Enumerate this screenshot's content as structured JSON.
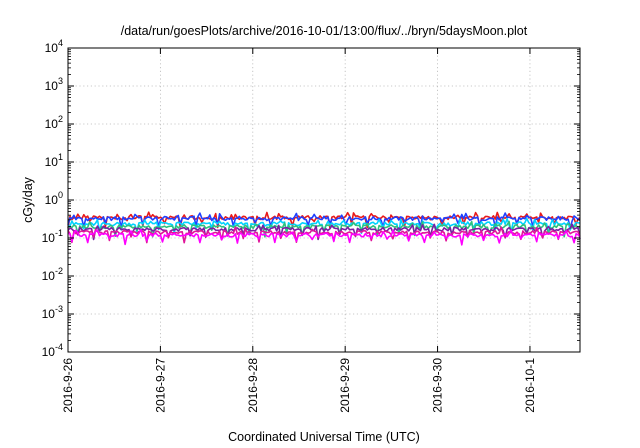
{
  "chart_data": {
    "type": "line",
    "title": "/data/run/goesPlots/archive/2016-10-01/13:00/flux/../bryn/5daysMoon.plot",
    "xlabel": "Coordinated Universal Time (UTC)",
    "ylabel": "cGy/day",
    "y_scale": "log",
    "ylim": [
      0.0001,
      10000
    ],
    "y_ticks": [
      {
        "base": "10",
        "exp": "-4",
        "value": 0.0001
      },
      {
        "base": "10",
        "exp": "-3",
        "value": 0.001
      },
      {
        "base": "10",
        "exp": "-2",
        "value": 0.01
      },
      {
        "base": "10",
        "exp": "-1",
        "value": 0.1
      },
      {
        "base": "10",
        "exp": "0",
        "value": 1
      },
      {
        "base": "10",
        "exp": "1",
        "value": 10
      },
      {
        "base": "10",
        "exp": "2",
        "value": 100
      },
      {
        "base": "10",
        "exp": "3",
        "value": 1000
      },
      {
        "base": "10",
        "exp": "4",
        "value": 10000
      }
    ],
    "xlim": [
      "2016-09-26 00:00",
      "2016-10-01 13:00"
    ],
    "x_ticks": [
      "2016-9-26",
      "2016-9-27",
      "2016-9-28",
      "2016-9-29",
      "2016-9-30",
      "2016-10-1"
    ],
    "grid": true,
    "series_colors": [
      "#e8191a",
      "#1f3fff",
      "#00d2ff",
      "#2ec27e",
      "#7a1fa2",
      "#e0169a",
      "#ff00ff"
    ],
    "series": [
      {
        "color": "#e8191a",
        "x": [
          "2016-09-26 00:00",
          "2016-09-27 00:00",
          "2016-09-28 00:00",
          "2016-09-29 00:00",
          "2016-09-30 00:00",
          "2016-10-01 00:00",
          "2016-10-01 13:00"
        ],
        "values": [
          0.34,
          0.35,
          0.34,
          0.35,
          0.34,
          0.35,
          0.33
        ]
      },
      {
        "color": "#1f3fff",
        "x": [
          "2016-09-26 00:00",
          "2016-09-27 00:00",
          "2016-09-28 00:00",
          "2016-09-29 00:00",
          "2016-09-30 00:00",
          "2016-10-01 00:00",
          "2016-10-01 13:00"
        ],
        "values": [
          0.32,
          0.33,
          0.32,
          0.33,
          0.32,
          0.33,
          0.31
        ]
      },
      {
        "color": "#00d2ff",
        "x": [
          "2016-09-26 00:00",
          "2016-09-27 00:00",
          "2016-09-28 00:00",
          "2016-09-29 00:00",
          "2016-09-30 00:00",
          "2016-10-01 00:00",
          "2016-10-01 13:00"
        ],
        "values": [
          0.23,
          0.24,
          0.23,
          0.24,
          0.23,
          0.24,
          0.23
        ]
      },
      {
        "color": "#2ec27e",
        "x": [
          "2016-09-26 00:00",
          "2016-09-27 00:00",
          "2016-09-28 00:00",
          "2016-09-29 00:00",
          "2016-09-30 00:00",
          "2016-10-01 00:00",
          "2016-10-01 13:00"
        ],
        "values": [
          0.2,
          0.2,
          0.2,
          0.2,
          0.2,
          0.2,
          0.2
        ]
      },
      {
        "color": "#7a1fa2",
        "x": [
          "2016-09-26 00:00",
          "2016-09-27 00:00",
          "2016-09-28 00:00",
          "2016-09-29 00:00",
          "2016-09-30 00:00",
          "2016-10-01 00:00",
          "2016-10-01 13:00"
        ],
        "values": [
          0.17,
          0.17,
          0.17,
          0.17,
          0.17,
          0.17,
          0.17
        ]
      },
      {
        "color": "#e0169a",
        "x": [
          "2016-09-26 00:00",
          "2016-09-27 00:00",
          "2016-09-28 00:00",
          "2016-09-29 00:00",
          "2016-09-30 00:00",
          "2016-10-01 00:00",
          "2016-10-01 13:00"
        ],
        "values": [
          0.14,
          0.14,
          0.14,
          0.14,
          0.14,
          0.14,
          0.14
        ]
      },
      {
        "color": "#ff00ff",
        "x": [
          "2016-09-26 00:00",
          "2016-09-27 00:00",
          "2016-09-28 00:00",
          "2016-09-29 00:00",
          "2016-09-30 00:00",
          "2016-10-01 00:00",
          "2016-10-01 13:00"
        ],
        "values": [
          0.12,
          0.12,
          0.12,
          0.12,
          0.12,
          0.12,
          0.12
        ]
      }
    ]
  }
}
